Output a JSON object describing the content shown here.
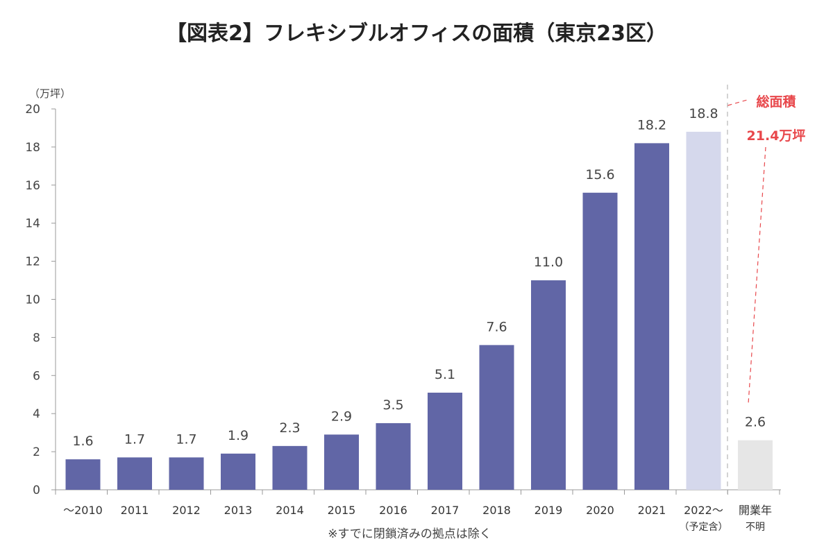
{
  "chart_data": {
    "type": "bar",
    "title": "【図表2】フレキシブルオフィスの面積（東京23区）",
    "ylabel": "（万坪）",
    "xlabel": "",
    "ylim": [
      0,
      20
    ],
    "yticks": [
      0,
      2,
      4,
      6,
      8,
      10,
      12,
      14,
      16,
      18,
      20
    ],
    "categories": [
      {
        "label": "～2010",
        "sub": ""
      },
      {
        "label": "2011",
        "sub": ""
      },
      {
        "label": "2012",
        "sub": ""
      },
      {
        "label": "2013",
        "sub": ""
      },
      {
        "label": "2014",
        "sub": ""
      },
      {
        "label": "2015",
        "sub": ""
      },
      {
        "label": "2016",
        "sub": ""
      },
      {
        "label": "2017",
        "sub": ""
      },
      {
        "label": "2018",
        "sub": ""
      },
      {
        "label": "2019",
        "sub": ""
      },
      {
        "label": "2020",
        "sub": ""
      },
      {
        "label": "2021",
        "sub": ""
      },
      {
        "label": "2022～",
        "sub": "（予定含）"
      },
      {
        "label": "開業年",
        "sub": "不明"
      }
    ],
    "values": [
      1.6,
      1.7,
      1.7,
      1.9,
      2.3,
      2.9,
      3.5,
      5.1,
      7.6,
      11.0,
      15.6,
      18.2,
      18.8,
      2.6
    ],
    "value_labels": [
      "1.6",
      "1.7",
      "1.7",
      "1.9",
      "2.3",
      "2.9",
      "3.5",
      "5.1",
      "7.6",
      "11.0",
      "15.6",
      "18.2",
      "18.8",
      "2.6"
    ],
    "bar_styles": [
      "actual",
      "actual",
      "actual",
      "actual",
      "actual",
      "actual",
      "actual",
      "actual",
      "actual",
      "actual",
      "actual",
      "actual",
      "planned",
      "unknown"
    ],
    "colors": {
      "actual": "#6166a6",
      "planned": "#d5d8ec",
      "unknown": "#e6e6e6",
      "axis": "#999999",
      "annotation": "#e8474b"
    },
    "annotation": {
      "line1": "総面積",
      "line2": "21.4万坪"
    },
    "note": "※すでに閉鎖済みの拠点は除く"
  }
}
